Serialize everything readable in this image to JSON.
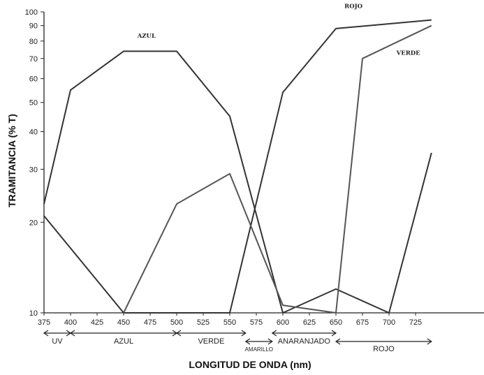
{
  "chart_data": {
    "type": "line",
    "xlabel": "LONGITUD DE ONDA (nm)",
    "ylabel": "TRAMITANCIA (% T)",
    "xlim": [
      375,
      740
    ],
    "ylim": [
      10,
      100
    ],
    "yscale": "log",
    "grid": false,
    "x_ticks": [
      375,
      400,
      425,
      450,
      475,
      500,
      525,
      550,
      575,
      600,
      625,
      650,
      675,
      700,
      725
    ],
    "y_ticks": [
      10,
      20,
      30,
      40,
      50,
      60,
      70,
      80,
      90,
      100
    ],
    "series": [
      {
        "name": "AZUL",
        "color": "#333333",
        "points": [
          [
            375,
            23
          ],
          [
            400,
            55
          ],
          [
            450,
            74
          ],
          [
            500,
            74
          ],
          [
            550,
            45
          ],
          [
            600,
            10
          ],
          [
            650,
            12
          ],
          [
            700,
            10
          ],
          [
            740,
            34
          ]
        ]
      },
      {
        "name": "ROJO",
        "color": "#333333",
        "points": [
          [
            375,
            21
          ],
          [
            450,
            10
          ],
          [
            550,
            10
          ],
          [
            600,
            54
          ],
          [
            650,
            88
          ],
          [
            740,
            94
          ]
        ]
      },
      {
        "name": "VERDE",
        "color": "#555555",
        "points": [
          [
            450,
            10
          ],
          [
            500,
            23
          ],
          [
            550,
            29
          ],
          [
            600,
            10.6
          ],
          [
            650,
            10
          ],
          [
            675,
            70
          ],
          [
            740,
            90
          ]
        ]
      }
    ],
    "series_labels": [
      {
        "text": "AZUL",
        "x": 463,
        "y": 82
      },
      {
        "text": "ROJO",
        "x": 658,
        "y": 103
      },
      {
        "text": "VERDE",
        "x": 707,
        "y": 72
      }
    ],
    "spectrum_bands": [
      {
        "label": "UV",
        "from": 375,
        "to": 400,
        "row": 1
      },
      {
        "label": "AZUL",
        "from": 400,
        "to": 500,
        "row": 1
      },
      {
        "label": "VERDE",
        "from": 500,
        "to": 565,
        "row": 1
      },
      {
        "label": "AMARILLO",
        "from": 565,
        "to": 590,
        "row": 2
      },
      {
        "label": "ANARANJADO",
        "from": 590,
        "to": 650,
        "row": 1
      },
      {
        "label": "ROJO",
        "from": 650,
        "to": 740,
        "row": 2
      }
    ]
  }
}
